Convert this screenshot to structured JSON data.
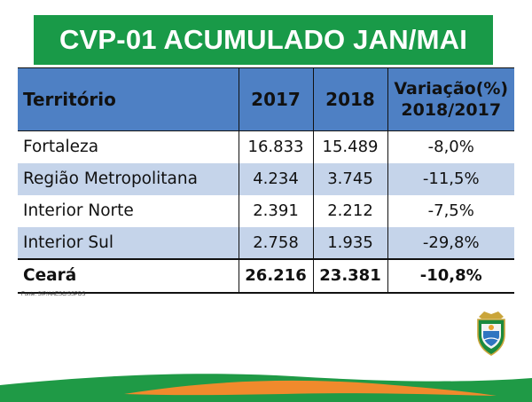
{
  "title": "CVP-01 ACUMULADO JAN/MAI",
  "table": {
    "headers": [
      "Território",
      "2017",
      "2018",
      "Variação(%)",
      "2018/2017"
    ],
    "rows": [
      [
        "Fortaleza",
        "16.833",
        "15.489",
        "-8,0%"
      ],
      [
        "Região Metropolitana",
        "4.234",
        "3.745",
        "-11,5%"
      ],
      [
        "Interior Norte",
        "2.391",
        "2.212",
        "-7,5%"
      ],
      [
        "Interior Sul",
        "2.758",
        "1.935",
        "-29,8%"
      ]
    ],
    "total": [
      "Ceará",
      "26.216",
      "23.381",
      "-10,8%"
    ]
  },
  "source": "Fonte: SIP/AAESC/SSPDS",
  "colors": {
    "banner": "#199a48",
    "header": "#4e80c4",
    "stripe": "#c5d4ea",
    "wave_green": "#1f9a46",
    "wave_orange": "#f08a2c"
  },
  "icons": {
    "emblem": "ceara-coat-of-arms-icon"
  }
}
